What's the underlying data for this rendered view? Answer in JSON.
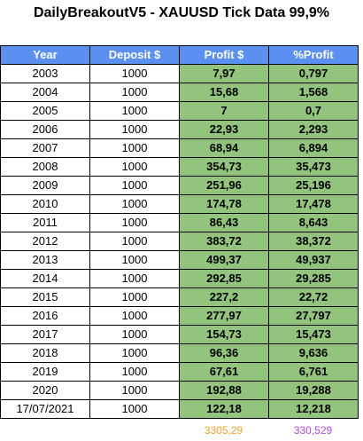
{
  "title": "DailyBreakoutV5 - XAUUSD Tick Data 99,9%",
  "colors": {
    "header_bg": "#5b8ff0",
    "header_text": "#ffffff",
    "value_bg": "#93c47d",
    "total_profit": "#f1a02a",
    "total_pct": "#b24ddf"
  },
  "headers": [
    "Year",
    "Deposit $",
    "Profit $",
    "%Profit"
  ],
  "rows": [
    {
      "year": "2003",
      "deposit": "1000",
      "profit": "7,97",
      "pct": "0,797"
    },
    {
      "year": "2004",
      "deposit": "1000",
      "profit": "15,68",
      "pct": "1,568"
    },
    {
      "year": "2005",
      "deposit": "1000",
      "profit": "7",
      "pct": "0,7"
    },
    {
      "year": "2006",
      "deposit": "1000",
      "profit": "22,93",
      "pct": "2,293"
    },
    {
      "year": "2007",
      "deposit": "1000",
      "profit": "68,94",
      "pct": "6,894"
    },
    {
      "year": "2008",
      "deposit": "1000",
      "profit": "354,73",
      "pct": "35,473"
    },
    {
      "year": "2009",
      "deposit": "1000",
      "profit": "251,96",
      "pct": "25,196"
    },
    {
      "year": "2010",
      "deposit": "1000",
      "profit": "174,78",
      "pct": "17,478"
    },
    {
      "year": "2011",
      "deposit": "1000",
      "profit": "86,43",
      "pct": "8,643"
    },
    {
      "year": "2012",
      "deposit": "1000",
      "profit": "383,72",
      "pct": "38,372"
    },
    {
      "year": "2013",
      "deposit": "1000",
      "profit": "499,37",
      "pct": "49,937"
    },
    {
      "year": "2014",
      "deposit": "1000",
      "profit": "292,85",
      "pct": "29,285"
    },
    {
      "year": "2015",
      "deposit": "1000",
      "profit": "227,2",
      "pct": "22,72"
    },
    {
      "year": "2016",
      "deposit": "1000",
      "profit": "277,97",
      "pct": "27,797"
    },
    {
      "year": "2017",
      "deposit": "1000",
      "profit": "154,73",
      "pct": "15,473"
    },
    {
      "year": "2018",
      "deposit": "1000",
      "profit": "96,36",
      "pct": "9,636"
    },
    {
      "year": "2019",
      "deposit": "1000",
      "profit": "67,61",
      "pct": "6,761"
    },
    {
      "year": "2020",
      "deposit": "1000",
      "profit": "192,88",
      "pct": "19,288"
    },
    {
      "year": "17/07/2021",
      "deposit": "1000",
      "profit": "122,18",
      "pct": "12,218"
    }
  ],
  "totals": {
    "profit": "3305,29",
    "pct": "330,529"
  }
}
